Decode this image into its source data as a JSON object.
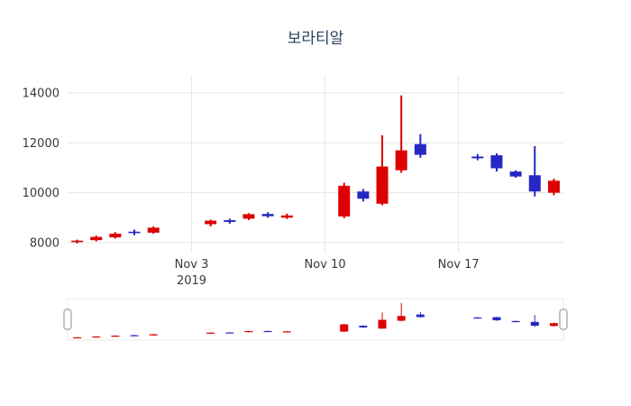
{
  "title": "보라티알",
  "chart_data": {
    "type": "candlestick",
    "title": "보라티알",
    "legend": "none",
    "grid": true,
    "rangeslider": true,
    "ylim": [
      7600,
      14650
    ],
    "y_ticks": [
      8000,
      10000,
      12000,
      14000
    ],
    "x_ticks": [
      {
        "date": "2019-11-03",
        "label": "Nov 3",
        "sublabel": "2019"
      },
      {
        "date": "2019-11-10",
        "label": "Nov 10",
        "sublabel": ""
      },
      {
        "date": "2019-11-17",
        "label": "Nov 17",
        "sublabel": ""
      }
    ],
    "dates": [
      "2019-10-28",
      "2019-10-29",
      "2019-10-30",
      "2019-10-31",
      "2019-11-01",
      "2019-11-04",
      "2019-11-05",
      "2019-11-06",
      "2019-11-07",
      "2019-11-08",
      "2019-11-11",
      "2019-11-12",
      "2019-11-13",
      "2019-11-14",
      "2019-11-15",
      "2019-11-18",
      "2019-11-19",
      "2019-11-20",
      "2019-11-21",
      "2019-11-22"
    ],
    "open": [
      8020,
      8100,
      8210,
      8440,
      8400,
      8740,
      8900,
      8960,
      9150,
      9000,
      9050,
      10050,
      9560,
      10900,
      11950,
      11450,
      11500,
      10850,
      10700,
      10000
    ],
    "high": [
      8120,
      8280,
      8420,
      8520,
      8650,
      8920,
      8960,
      9180,
      9220,
      9160,
      10400,
      10150,
      12300,
      13900,
      12350,
      11550,
      11580,
      10900,
      11870,
      10560
    ],
    "low": [
      7970,
      8050,
      8160,
      8300,
      8360,
      8650,
      8760,
      8900,
      9000,
      8950,
      8980,
      9650,
      9500,
      10800,
      11400,
      11300,
      10850,
      10600,
      9850,
      9900
    ],
    "close": [
      8080,
      8230,
      8360,
      8380,
      8600,
      8880,
      8830,
      9140,
      9060,
      9090,
      10280,
      9760,
      11050,
      11700,
      11520,
      11380,
      10980,
      10650,
      10050,
      10480
    ],
    "colors": {
      "increasing": "#dc0000",
      "decreasing": "#2727c3",
      "grid": "#e5e5e5",
      "tick_text": "#3a3a3a",
      "title_text": "#2a3f5f",
      "slider_border": "#e8e8e8",
      "handle_border": "#9e9e9e",
      "background": "#ffffff"
    }
  }
}
